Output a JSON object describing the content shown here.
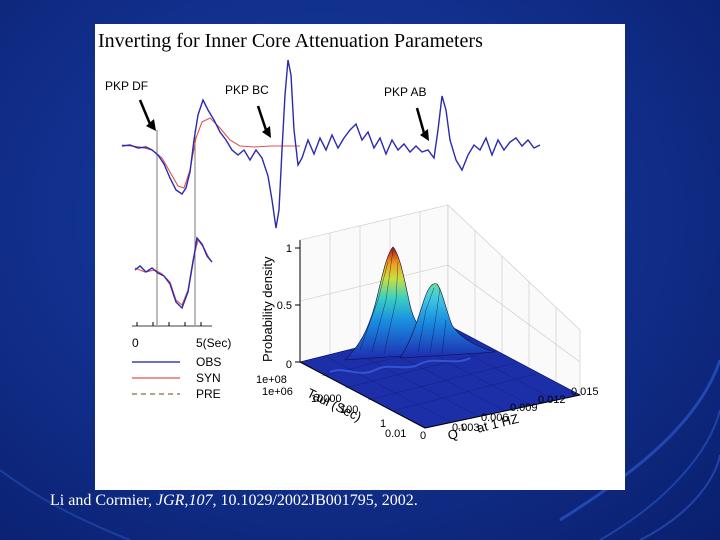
{
  "slide": {
    "title": "Inverting for Inner Core Attenuation Parameters",
    "citation": {
      "authors": "Li and Cormier,",
      "journal": "JGR,",
      "volume": "107",
      "rest": ", 10.1029/2002JB001795, 2002."
    }
  },
  "figure": {
    "phases": [
      "PKP DF",
      "PKP BC",
      "PKP AB"
    ],
    "time_axis": {
      "start": "0",
      "end": "5(Sec)"
    },
    "legend": [
      {
        "label": "OBS",
        "color": "#1a1aa0",
        "style": "solid"
      },
      {
        "label": "SYN",
        "color": "#e05050",
        "style": "solid"
      },
      {
        "label": "PRE",
        "color": "#8a6a3a",
        "style": "dashed"
      }
    ],
    "surface": {
      "z_label": "Probability density",
      "z_ticks": [
        "1",
        "0.5",
        "0"
      ],
      "tau_label": "Taul (Sec)",
      "tau_ticks": [
        "1e+08",
        "1e+06",
        "10000",
        "100",
        "1",
        "0.01"
      ],
      "q_label": "Q",
      "q_superscript": "-1",
      "q_suffix": "at 1 HZ",
      "q_ticks": [
        "0",
        "0.003",
        "0.006",
        "0.009",
        "0.012",
        "0.015"
      ]
    }
  }
}
